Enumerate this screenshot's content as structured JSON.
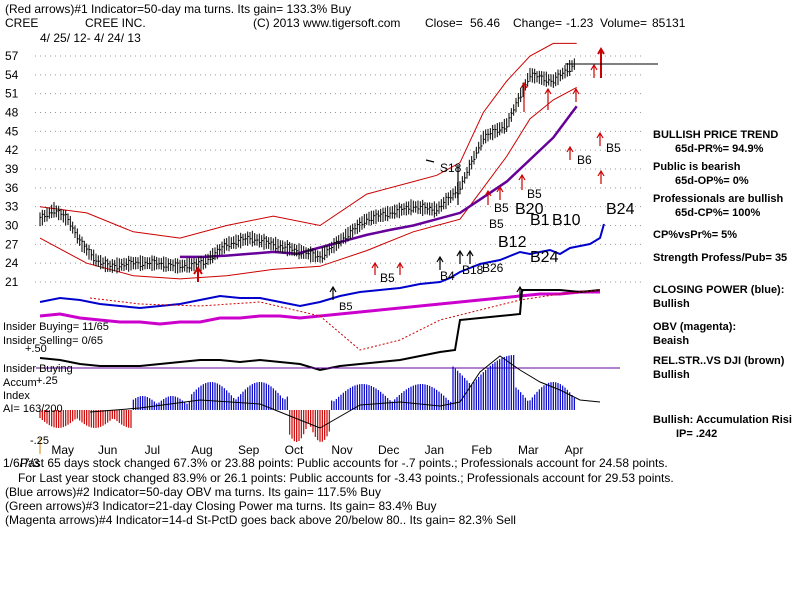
{
  "header": {
    "line1": "(Red arrows)#1 Indicator=50-day ma turns. Its gain= 133.3% Buy",
    "ticker": "CREE",
    "company": "CREE INC.",
    "copyright": "(C) 2013 www.tigersoft.com",
    "close_label": "Close=",
    "close_value": "56.46",
    "change_label": "Change=",
    "change_value": "-1.23",
    "volume_label": "Volume=",
    "volume_value": "85131",
    "date_range": "4/ 25/ 12- 4/ 24/ 13"
  },
  "right_panel": {
    "bullish_trend": "BULLISH PRICE TREND",
    "pr": "65d-PR%= 94.9%",
    "public_bearish": "Public is bearish",
    "op": "65d-OP%= 0%",
    "pros_bullish": "Professionals are bullish",
    "cp": "65d-CP%= 100%",
    "cpvspr": "CP%vsPr%=  5%",
    "strength": "Strength Profess/Pub= 35",
    "closing_power": "CLOSING POWER (blue):",
    "closing_power_val": "Bullish",
    "obv": "OBV (magenta):",
    "obv_val": "Beaish",
    "relstr": "REL.STR..VS DJI (brown)",
    "relstr_val": "Bullish",
    "accum": "Bullish: Accumulation Risi",
    "ip": "IP=  .242"
  },
  "left_labels": {
    "insider_buying": "Insider Buying= 11/65",
    "insider_selling": "Insider Selling= 0/65",
    "plus50": "+.50",
    "insider_buying2": "Insider Buying",
    "accum": "Accum",
    "plus25": "+.25",
    "index": "Index",
    "ai": "AI= 163/200",
    "minus25": "-.25"
  },
  "signals": {
    "s18": "S18",
    "b5a": "B5",
    "b4": "B4",
    "b18": "B18",
    "b26": "B26",
    "b5b": "B5",
    "b5c": "B5",
    "b5d": "B5",
    "b20": "B20",
    "b1": "B1",
    "b10": "B10",
    "b12": "B12",
    "b24a": "B24",
    "b24b": "B24",
    "b6": "B6",
    "b5e": "B5",
    "b5f": "B5"
  },
  "footer": {
    "line1": "Past 65 days stock changed  67.3% or  23.88 points:  Public accounts for -.7 points.;  Professionals account for  24.58 points.",
    "overlap": "1/6/7/3",
    "line2": "For Last year stock changed  83.9% or  26.1 points:  Public accounts for -3.43 points.;  Professionals account for  29.53 points.",
    "line3": "(Blue arrows)#2 Indicator=50-day OBV ma turns. Its gain= 117.5% Buy",
    "line4": "(Green arrows)#3 Indicator=21-day Closing Power ma turns. Its gain= 83.4% Buy",
    "line5": "(Magenta arrows)#4 Indicator=14-d St-PctD goes back above 20/below 80.. Its gain= 82.3% Sell"
  },
  "colors": {
    "price": "#000000",
    "bands": "#cc0000",
    "ma": "#660099",
    "closing_power": "#0000cc",
    "obv": "#cc00cc",
    "relstr": "#000000",
    "accum_pos": "#0000cc",
    "accum_neg": "#cc0000",
    "grid": "#999999"
  },
  "chart_data": {
    "type": "line",
    "title": "CREE INC.",
    "period": "4/25/12 - 4/24/13",
    "x_ticks": [
      "May",
      "Jun",
      "Jul",
      "Aug",
      "Sep",
      "Oct",
      "Nov",
      "Dec",
      "Jan",
      "Feb",
      "Mar",
      "Apr"
    ],
    "y_ticks": [
      21,
      24,
      27,
      30,
      33,
      36,
      39,
      42,
      45,
      48,
      51,
      54,
      57
    ],
    "ylim": [
      19,
      59
    ],
    "series": [
      {
        "name": "price",
        "x": [
          0,
          0.3,
          0.6,
          0.9,
          1.2,
          1.5,
          2,
          2.5,
          3,
          3.5,
          4,
          4.5,
          5,
          5.5,
          6,
          6.5,
          7,
          7.5,
          8,
          8.5,
          9,
          9.5,
          10,
          10.5,
          11,
          11.5
        ],
        "values": [
          31,
          32.5,
          31,
          27,
          24.5,
          23.5,
          24,
          24,
          23.5,
          24,
          27,
          28,
          27,
          26,
          25,
          28,
          31,
          32,
          33,
          32.5,
          36,
          44,
          46,
          54,
          53,
          56
        ]
      },
      {
        "name": "upper_band",
        "x": [
          0,
          1,
          2,
          3,
          4,
          5,
          6,
          7,
          8,
          8.5,
          9,
          9.5,
          10,
          10.5,
          11,
          11.5
        ],
        "values": [
          33,
          32,
          29,
          28,
          30,
          31.5,
          30,
          35,
          37,
          38,
          40,
          48,
          53,
          57,
          59,
          59
        ]
      },
      {
        "name": "lower_band",
        "x": [
          0,
          1,
          2,
          3,
          4,
          5,
          6,
          7,
          8,
          8.5,
          9,
          9.5,
          10,
          10.5,
          11,
          11.5
        ],
        "values": [
          28,
          24,
          22,
          21.5,
          22,
          23,
          23.5,
          26,
          29,
          30,
          31,
          36,
          41,
          47,
          50,
          52
        ]
      },
      {
        "name": "ma_50",
        "x": [
          3,
          3.5,
          4,
          4.5,
          5,
          5.5,
          6,
          6.5,
          7,
          7.5,
          8,
          8.5,
          9,
          9.5,
          10,
          10.5,
          11,
          11.5
        ],
        "values": [
          25,
          25,
          25.2,
          25.5,
          25.8,
          25.5,
          26.5,
          27.5,
          28.5,
          29.3,
          30,
          31,
          32,
          34.5,
          37,
          40.5,
          44,
          49
        ]
      }
    ]
  }
}
